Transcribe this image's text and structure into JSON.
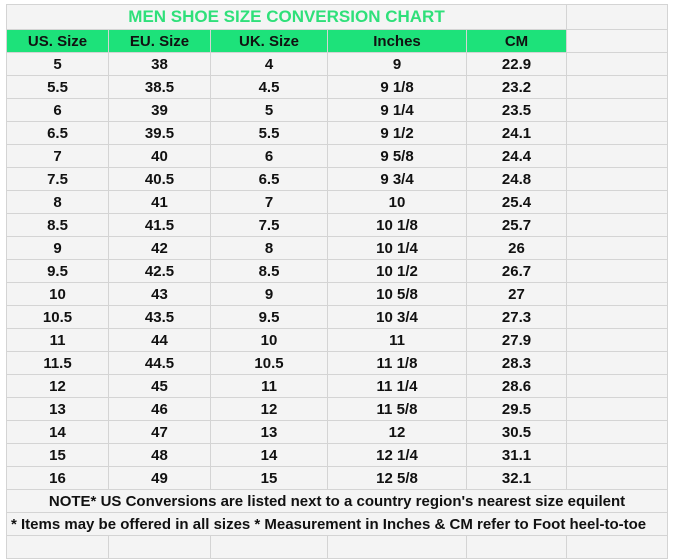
{
  "title": "MEN SHOE SIZE CONVERSION CHART",
  "colors": {
    "accent": "#1de27a",
    "title_text": "#2fe07a"
  },
  "headers": [
    "US. Size",
    "EU. Size",
    "UK. Size",
    "Inches",
    "CM"
  ],
  "rows": [
    [
      "5",
      "38",
      "4",
      "9",
      "22.9"
    ],
    [
      "5.5",
      "38.5",
      "4.5",
      "9 1/8",
      "23.2"
    ],
    [
      "6",
      "39",
      "5",
      "9 1/4",
      "23.5"
    ],
    [
      "6.5",
      "39.5",
      "5.5",
      "9 1/2",
      "24.1"
    ],
    [
      "7",
      "40",
      "6",
      "9 5/8",
      "24.4"
    ],
    [
      "7.5",
      "40.5",
      "6.5",
      "9 3/4",
      "24.8"
    ],
    [
      "8",
      "41",
      "7",
      "10",
      "25.4"
    ],
    [
      "8.5",
      "41.5",
      "7.5",
      "10 1/8",
      "25.7"
    ],
    [
      "9",
      "42",
      "8",
      "10 1/4",
      "26"
    ],
    [
      "9.5",
      "42.5",
      "8.5",
      "10 1/2",
      "26.7"
    ],
    [
      "10",
      "43",
      "9",
      "10 5/8",
      "27"
    ],
    [
      "10.5",
      "43.5",
      "9.5",
      "10 3/4",
      "27.3"
    ],
    [
      "11",
      "44",
      "10",
      "11",
      "27.9"
    ],
    [
      "11.5",
      "44.5",
      "10.5",
      "11 1/8",
      "28.3"
    ],
    [
      "12",
      "45",
      "11",
      "11 1/4",
      "28.6"
    ],
    [
      "13",
      "46",
      "12",
      "11 5/8",
      "29.5"
    ],
    [
      "14",
      "47",
      "13",
      "12",
      "30.5"
    ],
    [
      "15",
      "48",
      "14",
      "12 1/4",
      "31.1"
    ],
    [
      "16",
      "49",
      "15",
      "12 5/8",
      "32.1"
    ]
  ],
  "notes": [
    "NOTE* US Conversions are listed next to a country region's nearest size equilent",
    "* Items may be offered in all sizes * Measurement in Inches & CM refer to Foot heel-to-toe"
  ]
}
